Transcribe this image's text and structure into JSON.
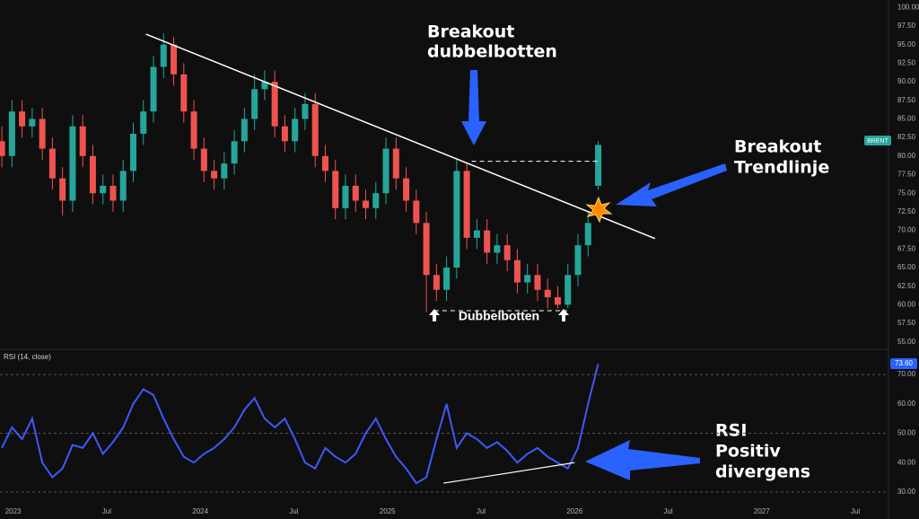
{
  "chart_data": [
    {
      "type": "candlestick",
      "symbol": "BRENT",
      "color_up": "#26a69a",
      "color_down": "#ef5350",
      "x": [
        2022.94,
        2022.994,
        2023.048,
        2023.102,
        2023.156,
        2023.21,
        2023.264,
        2023.318,
        2023.372,
        2023.426,
        2023.48,
        2023.534,
        2023.588,
        2023.642,
        2023.696,
        2023.75,
        2023.804,
        2023.858,
        2023.912,
        2023.966,
        2024.02,
        2024.074,
        2024.128,
        2024.182,
        2024.236,
        2024.29,
        2024.344,
        2024.398,
        2024.452,
        2024.506,
        2024.56,
        2024.614,
        2024.668,
        2024.722,
        2024.776,
        2024.83,
        2024.884,
        2024.938,
        2024.992,
        2025.046,
        2025.1,
        2025.154,
        2025.208,
        2025.262,
        2025.316,
        2025.37,
        2025.424,
        2025.478,
        2025.532,
        2025.586,
        2025.64,
        2025.694,
        2025.748,
        2025.802,
        2025.856,
        2025.91,
        2025.964,
        2026.018,
        2026.072,
        2026.126
      ],
      "open": [
        82,
        80,
        86,
        84,
        85,
        81,
        77,
        74,
        84,
        80,
        75,
        76,
        74,
        78,
        83,
        86,
        92,
        95,
        91,
        86,
        81,
        78,
        77,
        79,
        82,
        85,
        89,
        90,
        84,
        82,
        85,
        87,
        80,
        78,
        73,
        76,
        74,
        73,
        75,
        81,
        77,
        74,
        71,
        64,
        62,
        65,
        78,
        69,
        70,
        67,
        68,
        66,
        63,
        64,
        62,
        61,
        60,
        64,
        68,
        76
      ],
      "high": [
        84,
        87.5,
        87.5,
        86.5,
        86.5,
        82.5,
        78.5,
        85.5,
        85.5,
        81.5,
        77.5,
        77.5,
        79.5,
        84.5,
        87.5,
        93.5,
        96.5,
        96,
        92.5,
        87.5,
        82.5,
        79.5,
        80.5,
        83.5,
        86.5,
        91,
        91.5,
        91.5,
        85.5,
        86.5,
        88.5,
        88.5,
        81.5,
        79.5,
        77.5,
        77.5,
        75.5,
        76.5,
        82.5,
        82.5,
        78.5,
        75.5,
        72.5,
        65.5,
        66.5,
        79.5,
        79,
        71.5,
        71.5,
        69.5,
        69.5,
        67.5,
        65.5,
        65.5,
        63.5,
        62.5,
        65.5,
        69.5,
        72.5,
        82
      ],
      "low": [
        78.5,
        78.5,
        82.5,
        82.5,
        79.5,
        75.5,
        72,
        72.5,
        78.5,
        73.5,
        73.5,
        72.5,
        72.5,
        76.5,
        81.5,
        84.5,
        90.5,
        89.5,
        84.5,
        79.5,
        76.5,
        75.5,
        75.5,
        77.5,
        80.5,
        83.5,
        87.5,
        82.5,
        80.5,
        80.5,
        83.5,
        78.5,
        76.5,
        71.5,
        71.5,
        72.5,
        71.5,
        71.5,
        73.5,
        75.5,
        72.5,
        69.5,
        59,
        60.5,
        60.5,
        63.5,
        67.5,
        67.5,
        65.5,
        65.5,
        64.5,
        61.5,
        61.5,
        60.5,
        59.5,
        59.5,
        59.5,
        62.5,
        66.5,
        75.5
      ],
      "close": [
        80,
        86,
        84,
        85,
        81,
        77,
        74,
        84,
        80,
        75,
        76,
        74,
        78,
        83,
        86,
        92,
        95,
        91,
        86,
        81,
        78,
        77,
        79,
        82,
        85,
        89,
        90,
        84,
        82,
        85,
        87,
        80,
        78,
        73,
        76,
        74,
        73,
        75,
        81,
        77,
        74,
        71,
        64,
        62,
        65,
        78,
        69,
        70,
        67,
        68,
        66,
        63,
        64,
        62,
        61,
        60,
        64,
        68,
        71,
        81.5
      ],
      "xlim": [
        2022.93,
        2027.677
      ],
      "xticks": [
        2023,
        {
          "value": 2023.5,
          "label": "Jul"
        },
        2024,
        {
          "value": 2024.5,
          "label": "Jul"
        },
        2025,
        {
          "value": 2025.5,
          "label": "Jul"
        },
        2026,
        {
          "value": 2026.5,
          "label": "Jul"
        },
        2027,
        {
          "value": 2027.5,
          "label": "Jul"
        }
      ],
      "ylim": [
        54.0,
        101.0
      ],
      "yticks": [
        {
          "value": 100,
          "label": "100.00"
        },
        {
          "value": 97.5,
          "label": "97.50"
        },
        {
          "value": 95,
          "label": "95.00"
        },
        {
          "value": 92.5,
          "label": "92.50"
        },
        {
          "value": 90,
          "label": "90.00"
        },
        {
          "value": 87.5,
          "label": "87.50"
        },
        {
          "value": 85,
          "label": "85.00"
        },
        {
          "value": 82.5,
          "label": "82.50"
        },
        {
          "value": 80,
          "label": "80.00"
        },
        {
          "value": 77.5,
          "label": "77.50"
        },
        {
          "value": 75,
          "label": "75.00"
        },
        {
          "value": 72.5,
          "label": "72.50"
        },
        {
          "value": 70,
          "label": "70.00"
        },
        {
          "value": 67.5,
          "label": "67.50"
        },
        {
          "value": 65,
          "label": "65.00"
        },
        {
          "value": 62.5,
          "label": "62.50"
        },
        {
          "value": 60,
          "label": "60.00"
        },
        {
          "value": 57.5,
          "label": "57.50"
        },
        {
          "value": 55,
          "label": "55.00"
        }
      ],
      "trendline": {
        "x": [
          2023.71,
          2026.43
        ],
        "y": [
          96.4,
          68.9
        ]
      },
      "resistance": {
        "x": [
          2025.45,
          2026.13
        ],
        "y": 79.3
      },
      "support": {
        "x": [
          2025.25,
          2025.96
        ],
        "y": 59.2
      },
      "annotations": [
        "Breakout",
        "dubbelbotten",
        "Breakout",
        "Trendlinje",
        "Dubbelbotten"
      ]
    },
    {
      "type": "line",
      "title": "RSI (14, close)",
      "color": "#3d5afe",
      "last_label": "73.60",
      "x": [
        2022.94,
        2022.994,
        2023.048,
        2023.102,
        2023.156,
        2023.21,
        2023.264,
        2023.318,
        2023.372,
        2023.426,
        2023.48,
        2023.534,
        2023.588,
        2023.642,
        2023.696,
        2023.75,
        2023.804,
        2023.858,
        2023.912,
        2023.966,
        2024.02,
        2024.074,
        2024.128,
        2024.182,
        2024.236,
        2024.29,
        2024.344,
        2024.398,
        2024.452,
        2024.506,
        2024.56,
        2024.614,
        2024.668,
        2024.722,
        2024.776,
        2024.83,
        2024.884,
        2024.938,
        2024.992,
        2025.046,
        2025.1,
        2025.154,
        2025.208,
        2025.262,
        2025.316,
        2025.37,
        2025.424,
        2025.478,
        2025.532,
        2025.586,
        2025.64,
        2025.694,
        2025.748,
        2025.802,
        2025.856,
        2025.91,
        2025.964,
        2026.018,
        2026.072,
        2026.126
      ],
      "values": [
        45,
        52,
        48,
        55,
        40,
        35,
        38,
        46,
        45,
        50,
        43,
        47,
        52,
        60,
        65,
        63,
        55,
        48,
        42,
        40,
        43,
        45,
        48,
        52,
        58,
        62,
        55,
        52,
        55,
        48,
        40,
        38,
        45,
        42,
        40,
        43,
        50,
        55,
        48,
        42,
        38,
        33,
        35,
        48,
        60,
        45,
        50,
        48,
        45,
        47,
        44,
        40,
        43,
        45,
        42,
        40,
        38,
        45,
        60,
        73.6
      ],
      "ylim": [
        26.3,
        78.6
      ],
      "yticks": [
        {
          "value": 70,
          "label": "70.00"
        },
        {
          "value": 60,
          "label": "60.00"
        },
        {
          "value": 50,
          "label": "50.00"
        },
        {
          "value": 40,
          "label": "40.00"
        },
        {
          "value": 30,
          "label": "30.00"
        }
      ],
      "divergence": {
        "x": [
          2025.3,
          2026.0
        ],
        "y": [
          33,
          40
        ]
      },
      "annotations": [
        "RSI",
        "Positiv",
        "divergens"
      ]
    }
  ]
}
